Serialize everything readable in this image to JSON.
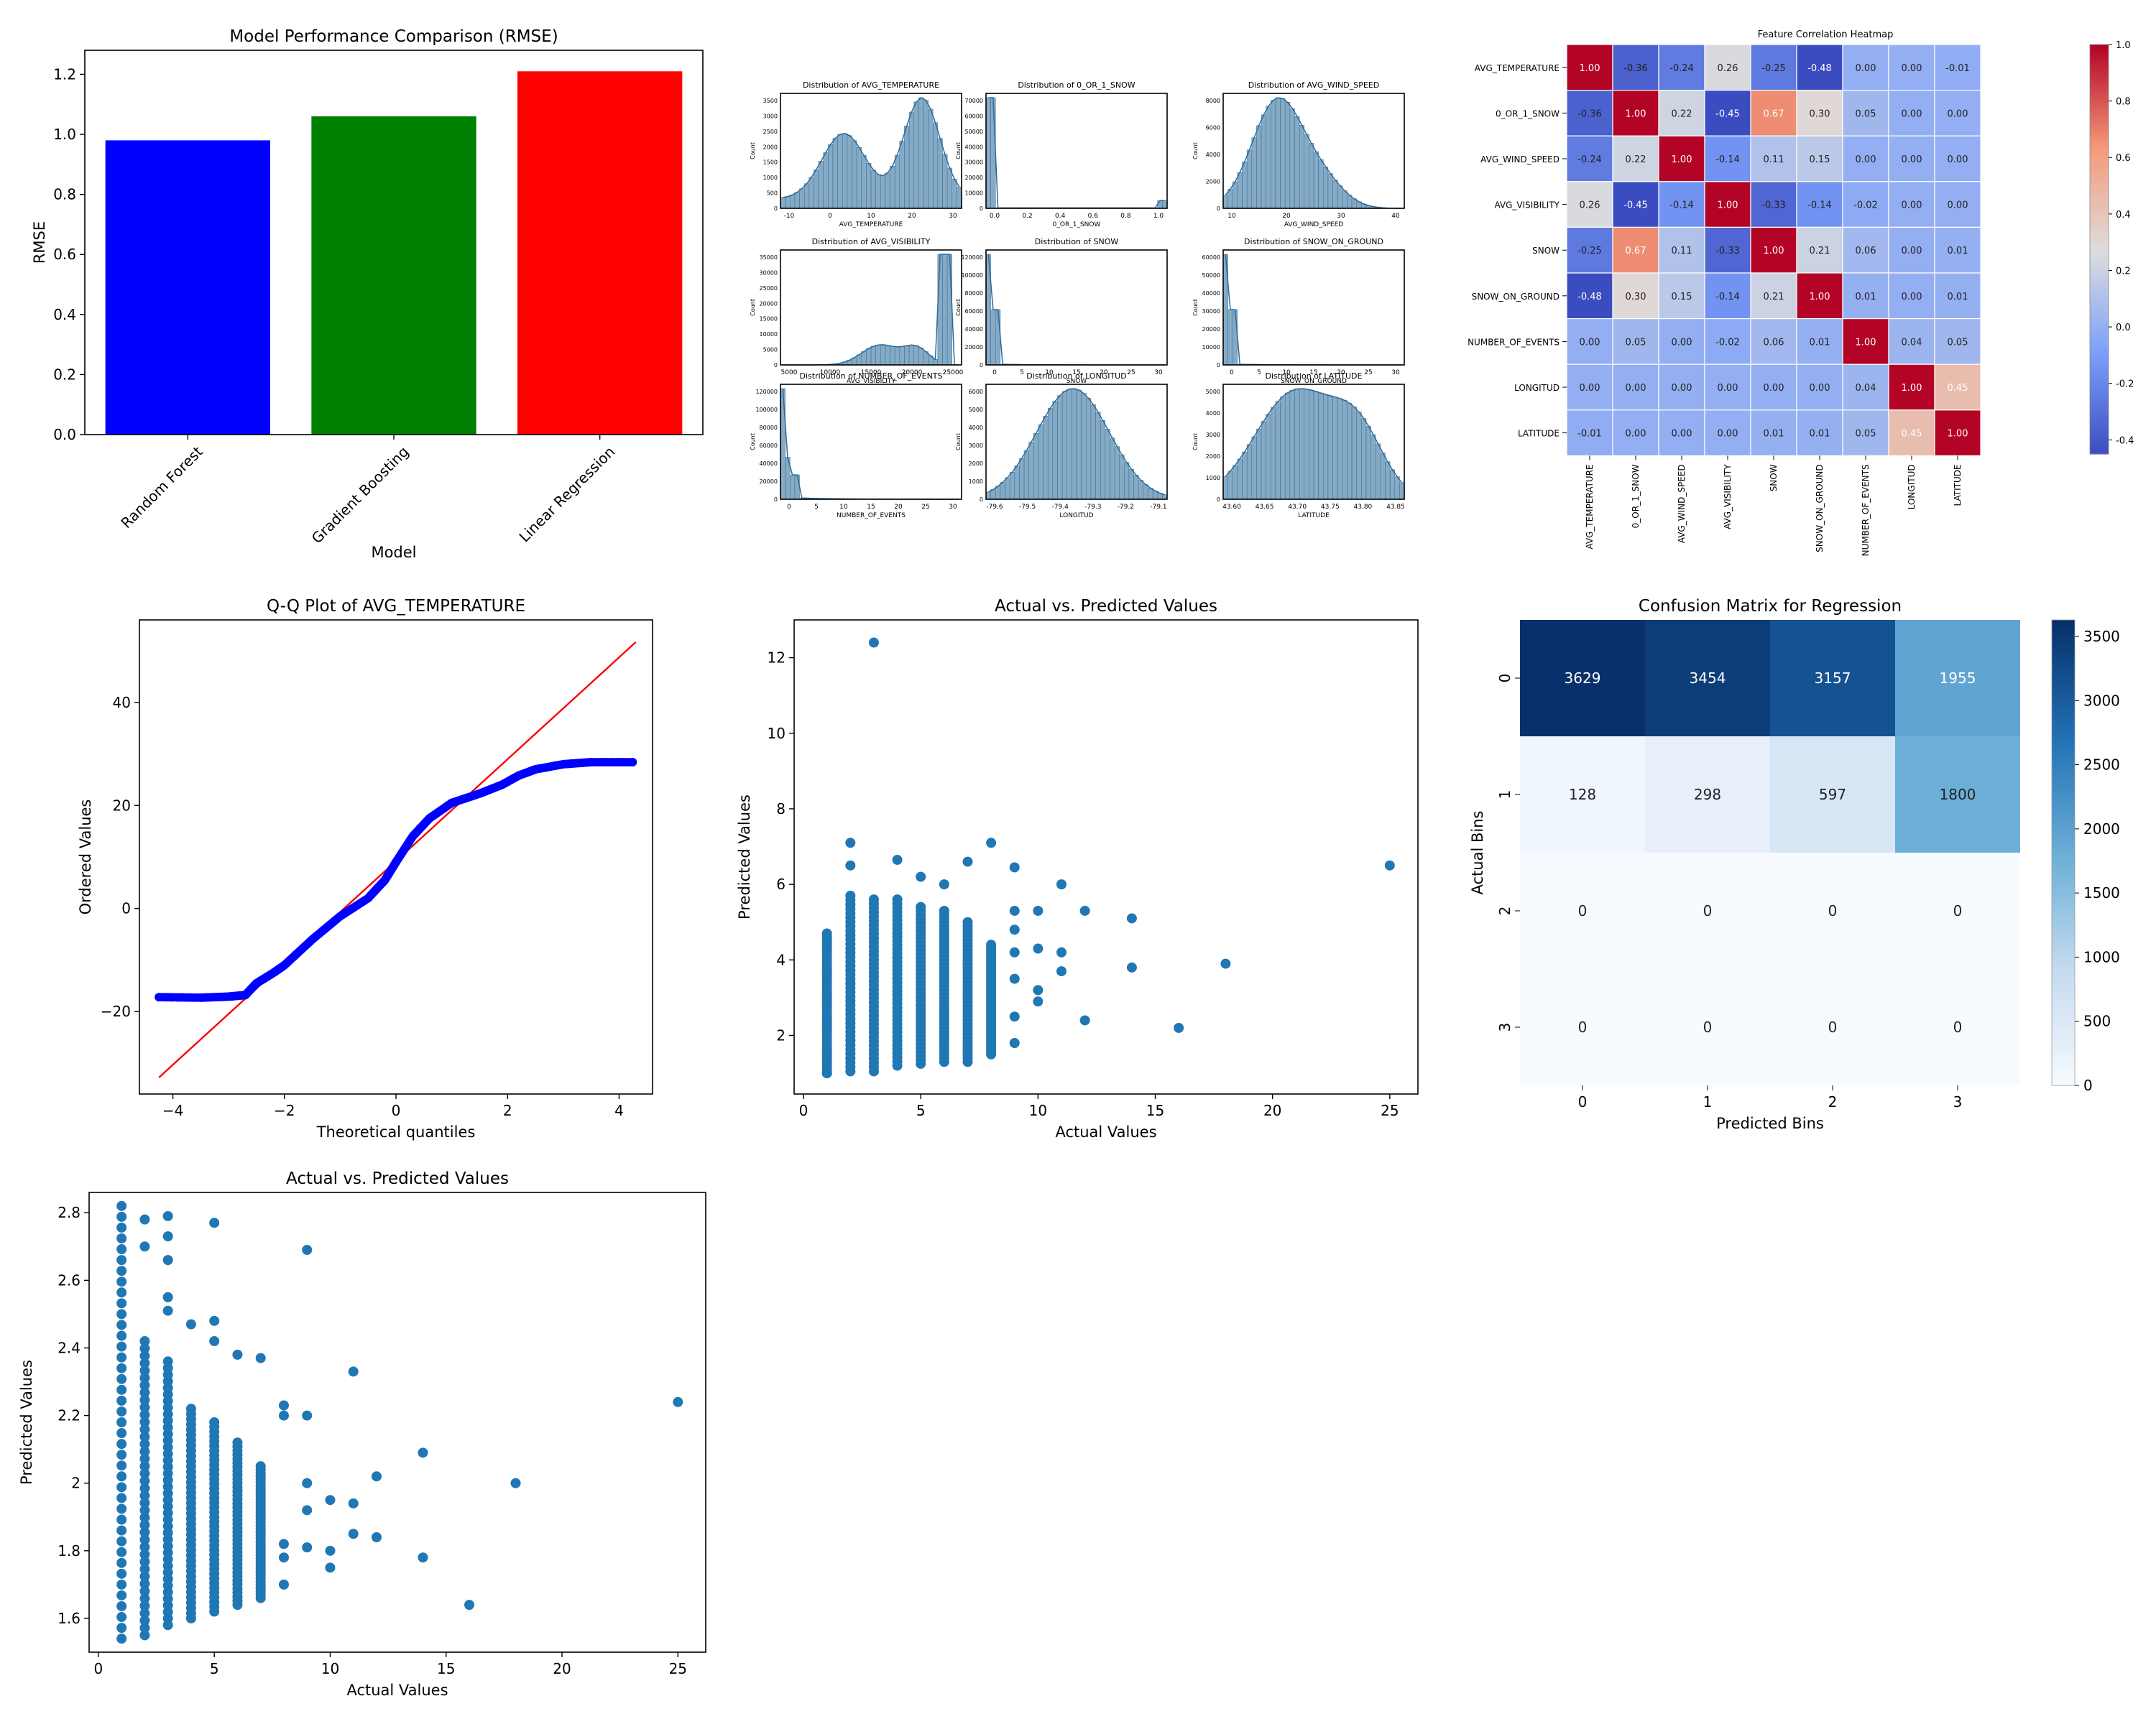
{
  "chart_data": [
    {
      "id": "rmse-bar",
      "type": "bar",
      "title": "Model Performance Comparison (RMSE)",
      "xlabel": "Model",
      "ylabel": "RMSE",
      "categories": [
        "Random Forest",
        "Gradient Boosting",
        "Linear Regression"
      ],
      "values": [
        0.98,
        1.06,
        1.21
      ],
      "colors": [
        "#0000ff",
        "#008000",
        "#ff0000"
      ],
      "ylim": [
        0,
        1.28
      ],
      "yticks": [
        "0.0",
        "0.2",
        "0.4",
        "0.6",
        "0.8",
        "1.0",
        "1.2"
      ],
      "grid": false
    },
    {
      "id": "distributions",
      "type": "histogram-grid",
      "color": "#5b8db3",
      "ylabel": "Count",
      "panels": [
        {
          "title": "Distribution of AVG_TEMPERATURE",
          "xlabel": "AVG_TEMPERATURE",
          "xticks": [
            "-10",
            "0",
            "10",
            "20",
            "30"
          ],
          "yticks": [
            "0",
            "500",
            "1000",
            "1500",
            "2000",
            "2500",
            "3000",
            "3500"
          ],
          "shape": "bimodal"
        },
        {
          "title": "Distribution of 0_OR_1_SNOW",
          "xlabel": "0_OR_1_SNOW",
          "xticks": [
            "0.0",
            "0.2",
            "0.4",
            "0.6",
            "0.8",
            "1.0"
          ],
          "yticks": [
            "0",
            "10000",
            "20000",
            "30000",
            "40000",
            "50000",
            "60000",
            "70000"
          ],
          "shape": "binary"
        },
        {
          "title": "Distribution of AVG_WIND_SPEED",
          "xlabel": "AVG_WIND_SPEED",
          "xticks": [
            "10",
            "20",
            "30",
            "40"
          ],
          "yticks": [
            "0",
            "2000",
            "4000",
            "6000",
            "8000"
          ],
          "shape": "rightskew"
        },
        {
          "title": "Distribution of AVG_VISIBILITY",
          "xlabel": "AVG_VISIBILITY",
          "xticks": [
            "5000",
            "10000",
            "15000",
            "20000",
            "25000"
          ],
          "yticks": [
            "0",
            "5000",
            "10000",
            "15000",
            "20000",
            "25000",
            "30000",
            "35000"
          ],
          "shape": "visibility"
        },
        {
          "title": "Distribution of SNOW",
          "xlabel": "SNOW",
          "xticks": [
            "0",
            "5",
            "10",
            "15",
            "20",
            "25",
            "30"
          ],
          "yticks": [
            "0",
            "20000",
            "40000",
            "60000",
            "80000",
            "100000",
            "120000"
          ],
          "shape": "spike"
        },
        {
          "title": "Distribution of SNOW_ON_GROUND",
          "xlabel": "SNOW_ON_GROUND",
          "xticks": [
            "0",
            "5",
            "10",
            "15",
            "20",
            "25",
            "30"
          ],
          "yticks": [
            "0",
            "10000",
            "20000",
            "30000",
            "40000",
            "50000",
            "60000"
          ],
          "shape": "spike"
        },
        {
          "title": "Distribution of NUMBER_OF_EVENTS",
          "xlabel": "NUMBER_OF_EVENTS",
          "xticks": [
            "0",
            "5",
            "10",
            "15",
            "20",
            "25",
            "30"
          ],
          "yticks": [
            "0",
            "20000",
            "40000",
            "60000",
            "80000",
            "100000",
            "120000"
          ],
          "shape": "events"
        },
        {
          "title": "Distribution of LONGITUD",
          "xlabel": "LONGITUD",
          "xticks": [
            "-79.6",
            "-79.5",
            "-79.4",
            "-79.3",
            "-79.2",
            "-79.1"
          ],
          "yticks": [
            "0",
            "1000",
            "2000",
            "3000",
            "4000",
            "5000",
            "6000"
          ],
          "shape": "normal"
        },
        {
          "title": "Distribution of LATITUDE",
          "xlabel": "LATITUDE",
          "xticks": [
            "43.60",
            "43.65",
            "43.70",
            "43.75",
            "43.80",
            "43.85"
          ],
          "yticks": [
            "0",
            "1000",
            "2000",
            "3000",
            "4000",
            "5000"
          ],
          "shape": "plateau"
        }
      ]
    },
    {
      "id": "corr-heatmap",
      "type": "heatmap",
      "title": "Feature Correlation Heatmap",
      "labels": [
        "AVG_TEMPERATURE",
        "0_OR_1_SNOW",
        "AVG_WIND_SPEED",
        "AVG_VISIBILITY",
        "SNOW",
        "SNOW_ON_GROUND",
        "NUMBER_OF_EVENTS",
        "LONGITUD",
        "LATITUDE"
      ],
      "matrix": [
        [
          1.0,
          -0.36,
          -0.24,
          0.26,
          -0.25,
          -0.48,
          0.0,
          -0.0,
          -0.01
        ],
        [
          -0.36,
          1.0,
          0.22,
          -0.45,
          0.67,
          0.3,
          0.05,
          0.0,
          0.0
        ],
        [
          -0.24,
          0.22,
          1.0,
          -0.14,
          0.11,
          0.15,
          -0.0,
          -0.0,
          0.0
        ],
        [
          0.26,
          -0.45,
          -0.14,
          1.0,
          -0.33,
          -0.14,
          -0.02,
          0.0,
          -0.0
        ],
        [
          -0.25,
          0.67,
          0.11,
          -0.33,
          1.0,
          0.21,
          0.06,
          -0.0,
          0.01
        ],
        [
          -0.48,
          0.3,
          0.15,
          -0.14,
          0.21,
          1.0,
          0.01,
          0.0,
          0.01
        ],
        [
          0.0,
          0.05,
          -0.0,
          -0.02,
          0.06,
          0.01,
          1.0,
          0.04,
          0.05
        ],
        [
          -0.0,
          0.0,
          -0.0,
          0.0,
          -0.0,
          0.0,
          0.04,
          1.0,
          0.45
        ],
        [
          -0.01,
          0.0,
          0.0,
          -0.0,
          0.01,
          0.01,
          0.05,
          0.45,
          1.0
        ]
      ],
      "colormap": "coolwarm",
      "vmin": -0.45,
      "vmax": 1.0,
      "colorbar_ticks": [
        "1.0",
        "0.8",
        "0.6",
        "0.4",
        "0.2",
        "0.0",
        "-0.2",
        "-0.4"
      ]
    },
    {
      "id": "qq-plot",
      "type": "scatter",
      "title": "Q-Q Plot of AVG_TEMPERATURE",
      "xlabel": "Theoretical quantiles",
      "ylabel": "Ordered Values",
      "xlim": [
        -4.6,
        4.6
      ],
      "ylim": [
        -36,
        56
      ],
      "xticks": [
        -4,
        -2,
        0,
        2,
        4
      ],
      "yticks": [
        -20,
        0,
        20,
        40
      ],
      "point_color": "#0000ff",
      "line_color": "#ff0000",
      "fit_line": [
        [
          -4.25,
          -32.8
        ],
        [
          4.3,
          51.7
        ]
      ],
      "quantile_curve": [
        [
          -4.25,
          -17.2
        ],
        [
          -3.5,
          -17.3
        ],
        [
          -3.0,
          -17.1
        ],
        [
          -2.7,
          -16.8
        ],
        [
          -2.5,
          -14.5
        ],
        [
          -2.2,
          -12.5
        ],
        [
          -2.0,
          -11.0
        ],
        [
          -1.5,
          -6.0
        ],
        [
          -1.0,
          -1.5
        ],
        [
          -0.5,
          2.0
        ],
        [
          -0.2,
          5.5
        ],
        [
          0.0,
          9.0
        ],
        [
          0.3,
          14.0
        ],
        [
          0.6,
          17.5
        ],
        [
          1.0,
          20.5
        ],
        [
          1.5,
          22.3
        ],
        [
          1.9,
          24.0
        ],
        [
          2.2,
          25.8
        ],
        [
          2.5,
          27.0
        ],
        [
          3.0,
          28.0
        ],
        [
          3.5,
          28.4
        ],
        [
          4.3,
          28.4
        ]
      ]
    },
    {
      "id": "actual-vs-pred-1",
      "type": "scatter",
      "title": "Actual vs. Predicted Values",
      "xlabel": "Actual Values",
      "ylabel": "Predicted Values",
      "xlim": [
        -0.4,
        26.2
      ],
      "ylim": [
        0.45,
        13.0
      ],
      "xticks": [
        0,
        5,
        10,
        15,
        20,
        25
      ],
      "yticks": [
        2,
        4,
        6,
        8,
        10,
        12
      ],
      "point_color": "#1f77b4",
      "columns": [
        {
          "x": 1,
          "min": 1.0,
          "max": 4.7
        },
        {
          "x": 2,
          "min": 1.05,
          "max": 5.7
        },
        {
          "x": 3,
          "min": 1.05,
          "max": 5.6
        },
        {
          "x": 4,
          "min": 1.2,
          "max": 5.6
        },
        {
          "x": 5,
          "min": 1.25,
          "max": 5.4
        },
        {
          "x": 6,
          "min": 1.3,
          "max": 5.3
        },
        {
          "x": 7,
          "min": 1.3,
          "max": 5.0
        },
        {
          "x": 8,
          "min": 1.5,
          "max": 4.4
        }
      ],
      "points": [
        [
          1,
          1.0
        ],
        [
          2,
          7.1
        ],
        [
          2,
          6.5
        ],
        [
          3,
          12.4
        ],
        [
          4,
          6.65
        ],
        [
          5,
          6.2
        ],
        [
          6,
          6.0
        ],
        [
          7,
          6.6
        ],
        [
          8,
          7.1
        ],
        [
          9,
          6.45
        ],
        [
          9,
          5.3
        ],
        [
          9,
          4.8
        ],
        [
          9,
          4.2
        ],
        [
          9,
          3.5
        ],
        [
          9,
          2.5
        ],
        [
          9,
          1.8
        ],
        [
          10,
          5.3
        ],
        [
          10,
          4.3
        ],
        [
          10,
          3.2
        ],
        [
          10,
          2.9
        ],
        [
          11,
          6.0
        ],
        [
          11,
          4.2
        ],
        [
          11,
          3.7
        ],
        [
          12,
          5.3
        ],
        [
          12,
          2.4
        ],
        [
          14,
          5.1
        ],
        [
          14,
          3.8
        ],
        [
          16,
          2.2
        ],
        [
          18,
          3.9
        ],
        [
          25,
          6.5
        ]
      ]
    },
    {
      "id": "confusion-matrix",
      "type": "heatmap",
      "title": "Confusion Matrix for Regression",
      "xlabel": "Predicted Bins",
      "ylabel": "Actual Bins",
      "row_labels": [
        "0",
        "1",
        "2",
        "3"
      ],
      "col_labels": [
        "0",
        "1",
        "2",
        "3"
      ],
      "matrix": [
        [
          3629,
          3454,
          3157,
          1955
        ],
        [
          128,
          298,
          597,
          1800
        ],
        [
          0,
          0,
          0,
          0
        ],
        [
          0,
          0,
          0,
          0
        ]
      ],
      "colormap": "Blues",
      "vmin": 0,
      "vmax": 3629,
      "colorbar_ticks": [
        3500,
        3000,
        2500,
        2000,
        1500,
        1000,
        500,
        0
      ]
    },
    {
      "id": "actual-vs-pred-2",
      "type": "scatter",
      "title": "Actual vs. Predicted Values",
      "xlabel": "Actual Values",
      "ylabel": "Predicted Values",
      "xlim": [
        -0.4,
        26.2
      ],
      "ylim": [
        1.5,
        2.86
      ],
      "xticks": [
        0,
        5,
        10,
        15,
        20,
        25
      ],
      "yticks": [
        1.6,
        1.8,
        2.0,
        2.2,
        2.4,
        2.6,
        2.8
      ],
      "point_color": "#1f77b4",
      "columns": [
        {
          "x": 1,
          "min": 1.54,
          "max": 2.82
        },
        {
          "x": 2,
          "min": 1.55,
          "max": 2.42
        },
        {
          "x": 3,
          "min": 1.58,
          "max": 2.36
        },
        {
          "x": 4,
          "min": 1.6,
          "max": 2.22
        },
        {
          "x": 5,
          "min": 1.62,
          "max": 2.18
        },
        {
          "x": 6,
          "min": 1.64,
          "max": 2.12
        },
        {
          "x": 7,
          "min": 1.66,
          "max": 2.05
        }
      ],
      "points": [
        [
          2,
          2.78
        ],
        [
          2,
          2.7
        ],
        [
          3,
          2.79
        ],
        [
          3,
          2.73
        ],
        [
          3,
          2.66
        ],
        [
          3,
          2.55
        ],
        [
          3,
          2.51
        ],
        [
          4,
          2.47
        ],
        [
          5,
          2.77
        ],
        [
          5,
          2.48
        ],
        [
          5,
          2.42
        ],
        [
          6,
          2.38
        ],
        [
          7,
          2.37
        ],
        [
          8,
          2.23
        ],
        [
          8,
          2.2
        ],
        [
          8,
          1.82
        ],
        [
          8,
          1.78
        ],
        [
          8,
          1.7
        ],
        [
          9,
          2.69
        ],
        [
          9,
          2.2
        ],
        [
          9,
          2.0
        ],
        [
          9,
          1.92
        ],
        [
          9,
          1.81
        ],
        [
          10,
          1.95
        ],
        [
          10,
          1.8
        ],
        [
          10,
          1.75
        ],
        [
          11,
          2.33
        ],
        [
          11,
          1.94
        ],
        [
          11,
          1.85
        ],
        [
          12,
          2.02
        ],
        [
          12,
          1.84
        ],
        [
          14,
          2.09
        ],
        [
          14,
          1.78
        ],
        [
          16,
          1.64
        ],
        [
          18,
          2.0
        ],
        [
          25,
          2.24
        ]
      ]
    }
  ]
}
